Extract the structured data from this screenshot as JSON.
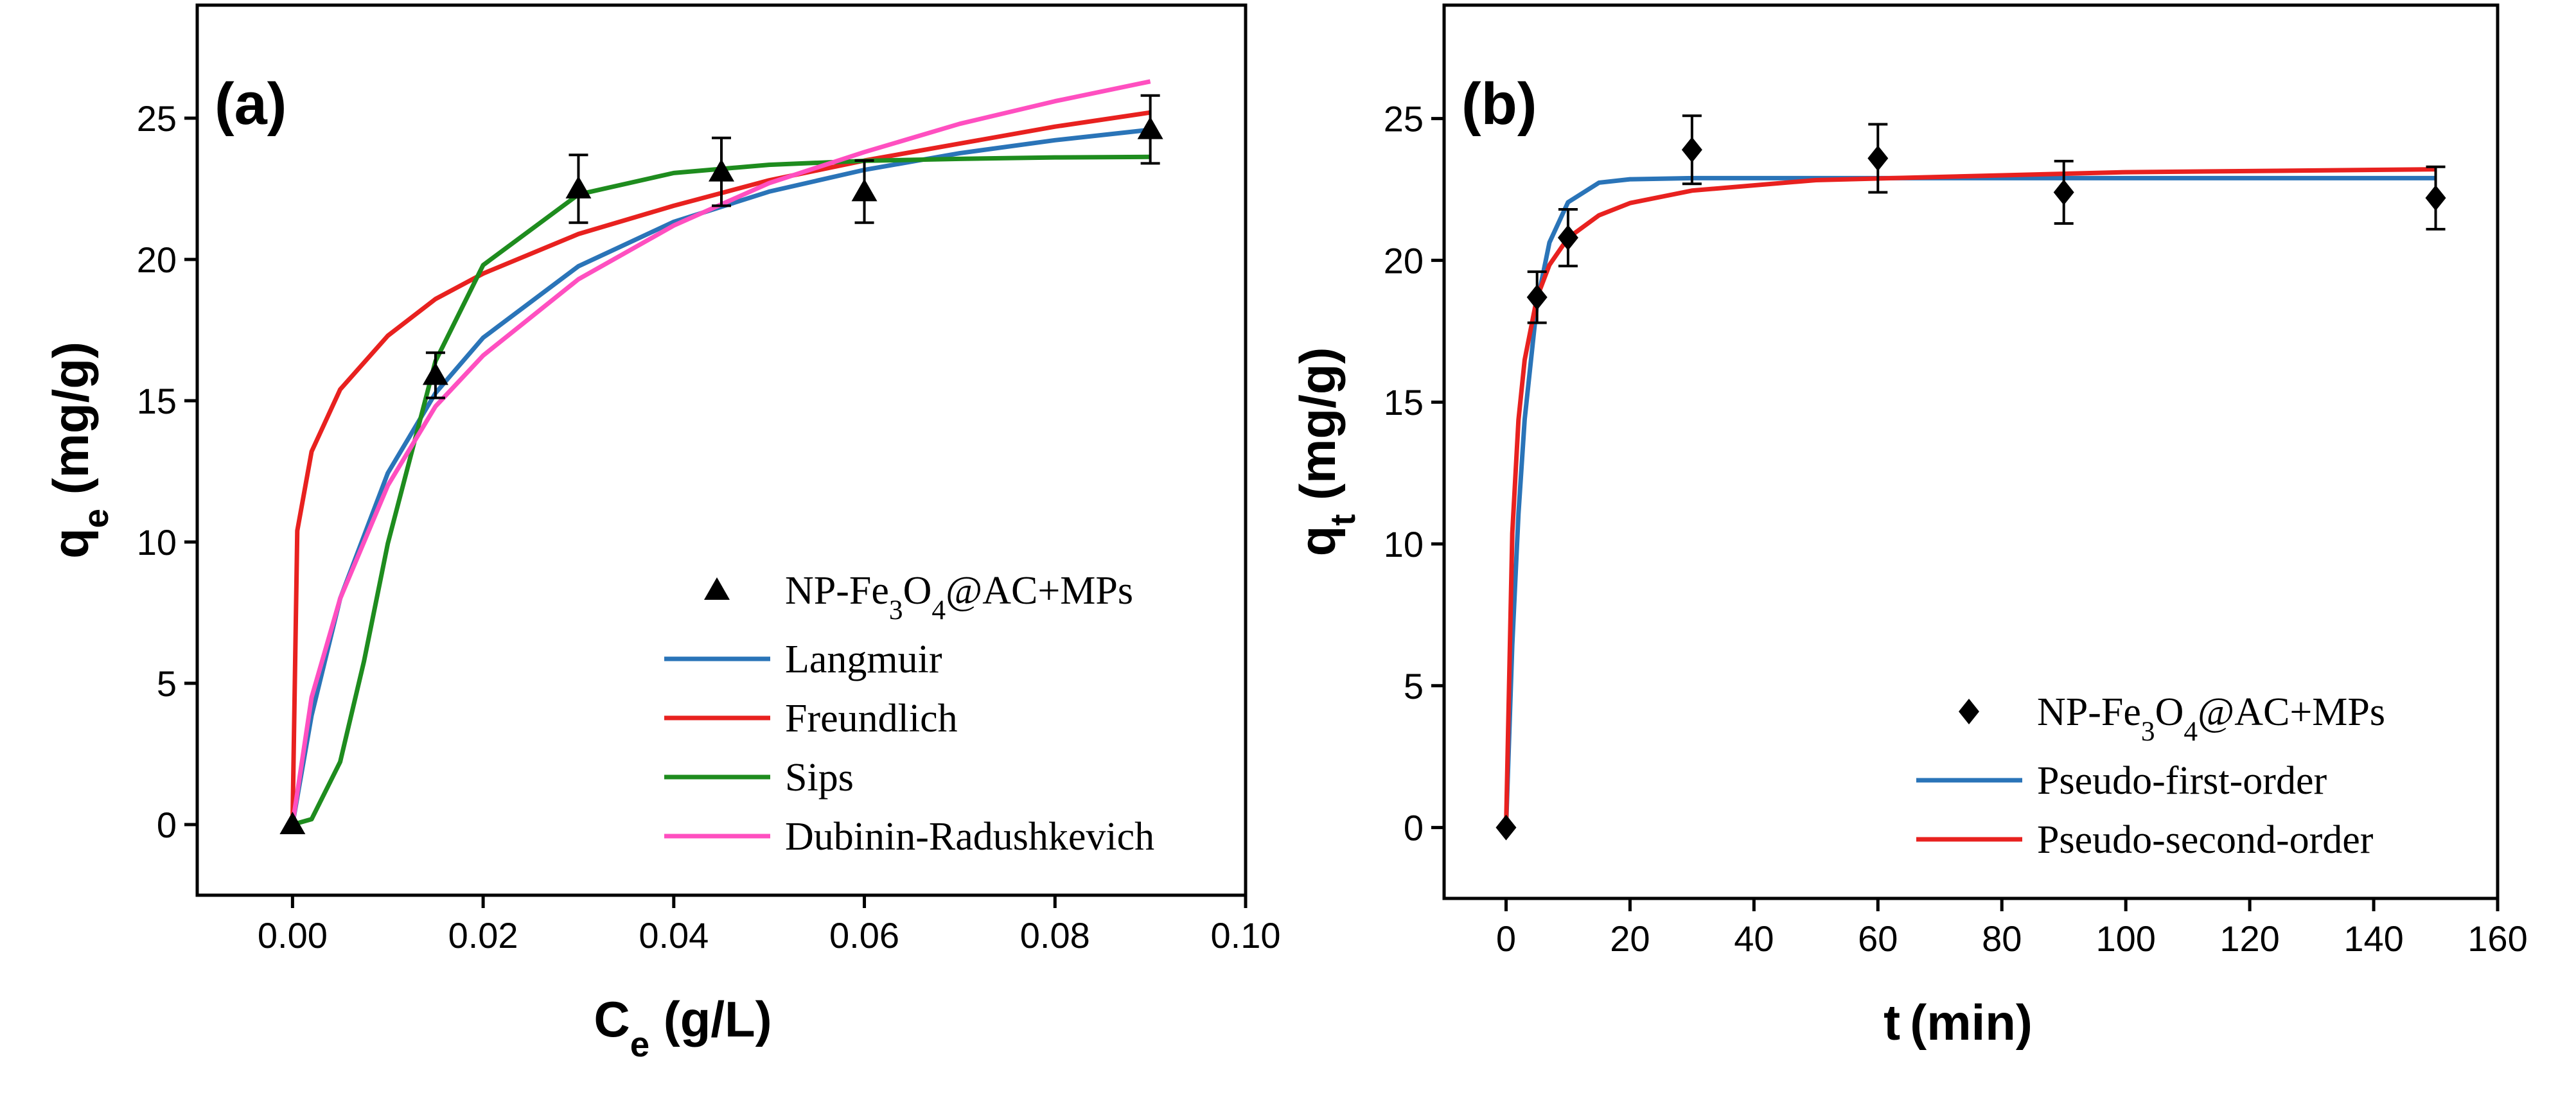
{
  "chart_data": [
    {
      "type": "scatter",
      "panel_label": "(a)",
      "x_label": "Ce (g/L)",
      "y_label": "qe (mg/g)",
      "xlim": [
        -0.01,
        0.1
      ],
      "ylim": [
        -2.5,
        29
      ],
      "xticks": [
        {
          "value": 0,
          "label": "0.00"
        },
        {
          "value": 0.02,
          "label": "0.02"
        },
        {
          "value": 0.04,
          "label": "0.04"
        },
        {
          "value": 0.06,
          "label": "0.06"
        },
        {
          "value": 0.08,
          "label": "0.08"
        },
        {
          "value": 0.1,
          "label": "0.10"
        }
      ],
      "yticks": [
        0,
        5,
        10,
        15,
        20,
        25
      ],
      "legend_loc": "lower right",
      "series": [
        {
          "name": "NP-Fe3O4@AC+MPs",
          "marker": "triangle",
          "color": "#000000",
          "x": [
            0,
            0.015,
            0.03,
            0.045,
            0.06,
            0.09
          ],
          "values": [
            0,
            15.9,
            22.5,
            23.1,
            22.4,
            24.6
          ],
          "errors": [
            0,
            0.8,
            1.2,
            1.2,
            1.1,
            1.2
          ]
        },
        {
          "name": "Langmuir",
          "color": "#2a74b8",
          "x": [
            0,
            0.002,
            0.005,
            0.01,
            0.015,
            0.02,
            0.03,
            0.04,
            0.05,
            0.06,
            0.07,
            0.08,
            0.09
          ],
          "values": [
            0,
            3.86,
            8.0,
            12.44,
            15.27,
            17.23,
            19.76,
            21.33,
            22.4,
            23.17,
            23.76,
            24.22,
            24.59
          ]
        },
        {
          "name": "Freundlich",
          "color": "#e8211f",
          "x": [
            0,
            0.0005,
            0.002,
            0.005,
            0.01,
            0.015,
            0.02,
            0.03,
            0.04,
            0.05,
            0.06,
            0.07,
            0.08,
            0.09
          ],
          "values": [
            0,
            10.4,
            13.2,
            15.4,
            17.3,
            18.6,
            19.5,
            20.9,
            21.9,
            22.8,
            23.5,
            24.1,
            24.7,
            25.2
          ]
        },
        {
          "name": "Sips",
          "color": "#1e8c1e",
          "x": [
            0,
            0.002,
            0.005,
            0.0075,
            0.01,
            0.015,
            0.02,
            0.03,
            0.04,
            0.05,
            0.06,
            0.07,
            0.08,
            0.09
          ],
          "values": [
            0,
            0.19,
            2.22,
            5.78,
            9.95,
            16.4,
            19.8,
            22.3,
            23.06,
            23.35,
            23.49,
            23.56,
            23.61,
            23.63
          ]
        },
        {
          "name": "Dubinin-Radushkevich",
          "color": "#ff4fc0",
          "x": [
            0,
            0.002,
            0.005,
            0.01,
            0.015,
            0.02,
            0.03,
            0.04,
            0.05,
            0.06,
            0.07,
            0.08,
            0.09
          ],
          "values": [
            0,
            4.5,
            8.0,
            12.0,
            14.8,
            16.6,
            19.3,
            21.2,
            22.7,
            23.8,
            24.8,
            25.6,
            26.3
          ]
        }
      ]
    },
    {
      "type": "scatter",
      "panel_label": "(b)",
      "x_label": "t (min)",
      "y_label": "qt (mg/g)",
      "xlim": [
        -10,
        160
      ],
      "ylim": [
        -2.5,
        29
      ],
      "xticks": [
        0,
        20,
        40,
        60,
        80,
        100,
        120,
        140,
        160
      ],
      "yticks": [
        0,
        5,
        10,
        15,
        20,
        25
      ],
      "legend_loc": "lower right",
      "series": [
        {
          "name": "NP-Fe3O4@AC+MPs",
          "marker": "diamond",
          "color": "#000000",
          "x": [
            0,
            5,
            10,
            30,
            60,
            90,
            150
          ],
          "values": [
            0,
            18.7,
            20.8,
            23.9,
            23.6,
            22.4,
            22.2
          ],
          "errors": [
            0,
            0.9,
            1.0,
            1.2,
            1.2,
            1.1,
            1.1
          ]
        },
        {
          "name": "Pseudo-first-order",
          "color": "#2a74b8",
          "x": [
            0,
            1,
            2,
            3,
            5,
            7,
            10,
            15,
            20,
            30,
            50,
            100,
            150
          ],
          "values": [
            0,
            6.43,
            11.06,
            14.39,
            18.5,
            20.63,
            22.05,
            22.74,
            22.86,
            22.9,
            22.9,
            22.9,
            22.9
          ]
        },
        {
          "name": "Pseudo-second-order",
          "color": "#e8211f",
          "x": [
            0,
            1,
            2,
            3,
            5,
            7,
            10,
            15,
            20,
            30,
            50,
            100,
            150
          ],
          "values": [
            0,
            10.37,
            14.37,
            16.49,
            18.7,
            19.84,
            20.79,
            21.59,
            22.02,
            22.46,
            22.83,
            23.11,
            23.21
          ]
        }
      ]
    }
  ]
}
